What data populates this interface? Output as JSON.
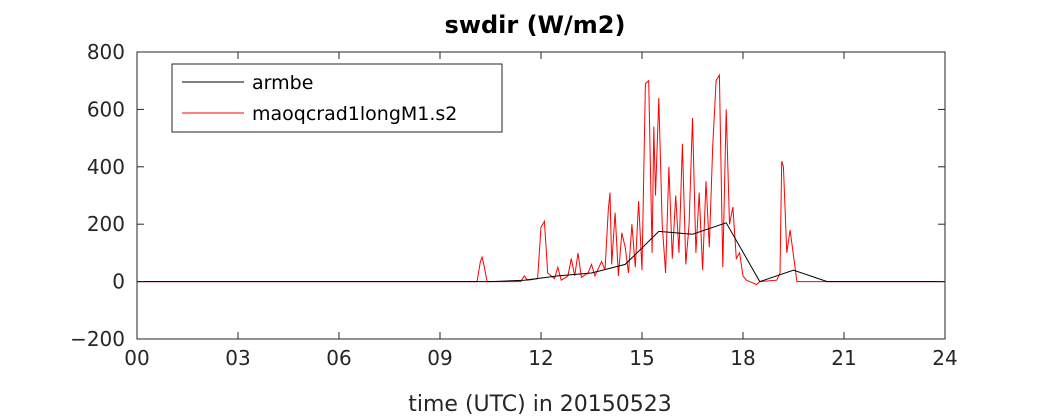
{
  "chart_data": {
    "type": "line",
    "title": "swdir  (W/m2)",
    "xlabel": "time (UTC) in 20150523",
    "ylabel": "",
    "xlim": [
      0,
      24
    ],
    "ylim": [
      -200,
      800
    ],
    "xticks": [
      0,
      3,
      6,
      9,
      12,
      15,
      18,
      21,
      24
    ],
    "xtick_labels": [
      "00",
      "03",
      "06",
      "09",
      "12",
      "15",
      "18",
      "21",
      "24"
    ],
    "yticks": [
      -200,
      0,
      200,
      400,
      600,
      800
    ],
    "ytick_labels": [
      "−200",
      "0",
      "200",
      "400",
      "600",
      "800"
    ],
    "grid": false,
    "legend_position": "top-left",
    "series": [
      {
        "name": "armbe",
        "color": "#000000",
        "x": [
          0,
          10.5,
          11.5,
          12.5,
          13.5,
          14.5,
          15.5,
          16.5,
          17.5,
          18.5,
          19.5,
          20.5,
          24
        ],
        "y": [
          0,
          0,
          5,
          20,
          30,
          60,
          175,
          165,
          205,
          0,
          40,
          0,
          0
        ]
      },
      {
        "name": "maoqcrad1longM1.s2",
        "color": "#ff0000",
        "x": [
          0,
          10.1,
          10.2,
          10.25,
          10.3,
          10.4,
          11.4,
          11.5,
          11.6,
          11.9,
          12.0,
          12.1,
          12.2,
          12.4,
          12.5,
          12.6,
          12.8,
          12.9,
          13.0,
          13.1,
          13.2,
          13.4,
          13.5,
          13.6,
          13.8,
          13.9,
          14.0,
          14.05,
          14.1,
          14.2,
          14.3,
          14.4,
          14.5,
          14.6,
          14.7,
          14.8,
          14.9,
          15.0,
          15.1,
          15.2,
          15.3,
          15.35,
          15.4,
          15.5,
          15.6,
          15.7,
          15.8,
          15.9,
          16.0,
          16.1,
          16.2,
          16.3,
          16.4,
          16.5,
          16.6,
          16.7,
          16.8,
          16.9,
          17.0,
          17.1,
          17.2,
          17.3,
          17.4,
          17.5,
          17.6,
          17.7,
          17.8,
          17.9,
          18.0,
          18.1,
          18.2,
          18.4,
          18.5,
          19.0,
          19.1,
          19.15,
          19.2,
          19.3,
          19.4,
          19.6,
          20.0,
          20.5,
          24
        ],
        "y": [
          0,
          0,
          70,
          85,
          60,
          0,
          0,
          20,
          5,
          10,
          190,
          210,
          30,
          10,
          50,
          5,
          20,
          80,
          20,
          100,
          15,
          30,
          60,
          20,
          70,
          40,
          250,
          310,
          60,
          240,
          20,
          170,
          120,
          30,
          200,
          50,
          280,
          40,
          690,
          700,
          100,
          540,
          300,
          640,
          200,
          30,
          400,
          80,
          300,
          100,
          480,
          60,
          200,
          570,
          100,
          310,
          40,
          350,
          120,
          470,
          700,
          720,
          50,
          600,
          200,
          260,
          80,
          100,
          20,
          5,
          0,
          -10,
          0,
          5,
          30,
          420,
          400,
          100,
          180,
          0,
          0,
          0,
          0
        ]
      }
    ]
  }
}
